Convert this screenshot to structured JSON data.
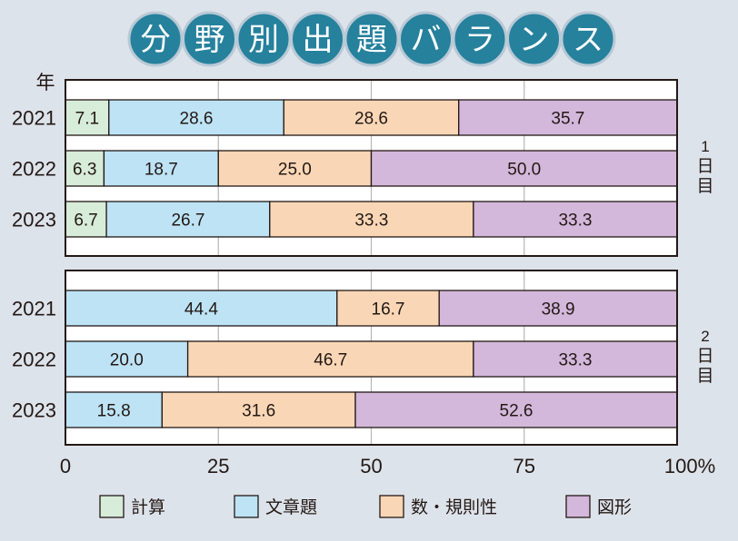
{
  "title_chars": [
    "分",
    "野",
    "別",
    "出",
    "題",
    "バ",
    "ラ",
    "ン",
    "ス"
  ],
  "colors": {
    "background": "#dde3ea",
    "title_circle": "#26819d",
    "calc": "#d7ecd9",
    "text_problem": "#bde3f5",
    "number_rule": "#f9d7b6",
    "figure": "#d3b8db"
  },
  "chart_data": {
    "type": "bar",
    "orientation": "horizontal-stacked-100",
    "ylabel": "年",
    "xlim": [
      0,
      100
    ],
    "xticks": [
      "0",
      "25",
      "50",
      "75",
      "100%"
    ],
    "xtick_values": [
      0,
      25,
      50,
      75,
      100
    ],
    "grid": true,
    "legend_position": "bottom",
    "legend": [
      {
        "name": "計算",
        "color": "#d7ecd9"
      },
      {
        "name": "文章題",
        "color": "#bde3f5"
      },
      {
        "name": "数・規則性",
        "color": "#f9d7b6"
      },
      {
        "name": "図形",
        "color": "#d3b8db"
      }
    ],
    "panels": [
      {
        "label": "1日目",
        "label_chars": [
          "1",
          "日",
          "目"
        ],
        "rows": [
          {
            "year": "2021",
            "segments": [
              {
                "series": 0,
                "value": 7.1
              },
              {
                "series": 1,
                "value": 28.6
              },
              {
                "series": 2,
                "value": 28.6
              },
              {
                "series": 3,
                "value": 35.7
              }
            ]
          },
          {
            "year": "2022",
            "segments": [
              {
                "series": 0,
                "value": 6.3
              },
              {
                "series": 1,
                "value": 18.7
              },
              {
                "series": 2,
                "value": 25.0
              },
              {
                "series": 3,
                "value": 50.0
              }
            ]
          },
          {
            "year": "2023",
            "segments": [
              {
                "series": 0,
                "value": 6.7
              },
              {
                "series": 1,
                "value": 26.7
              },
              {
                "series": 2,
                "value": 33.3
              },
              {
                "series": 3,
                "value": 33.3
              }
            ]
          }
        ]
      },
      {
        "label": "2日目",
        "label_chars": [
          "2",
          "日",
          "目"
        ],
        "rows": [
          {
            "year": "2021",
            "segments": [
              {
                "series": 1,
                "value": 44.4
              },
              {
                "series": 2,
                "value": 16.7
              },
              {
                "series": 3,
                "value": 38.9
              }
            ]
          },
          {
            "year": "2022",
            "segments": [
              {
                "series": 1,
                "value": 20.0
              },
              {
                "series": 2,
                "value": 46.7
              },
              {
                "series": 3,
                "value": 33.3
              }
            ]
          },
          {
            "year": "2023",
            "segments": [
              {
                "series": 1,
                "value": 15.8
              },
              {
                "series": 2,
                "value": 31.6
              },
              {
                "series": 3,
                "value": 52.6
              }
            ]
          }
        ]
      }
    ]
  }
}
